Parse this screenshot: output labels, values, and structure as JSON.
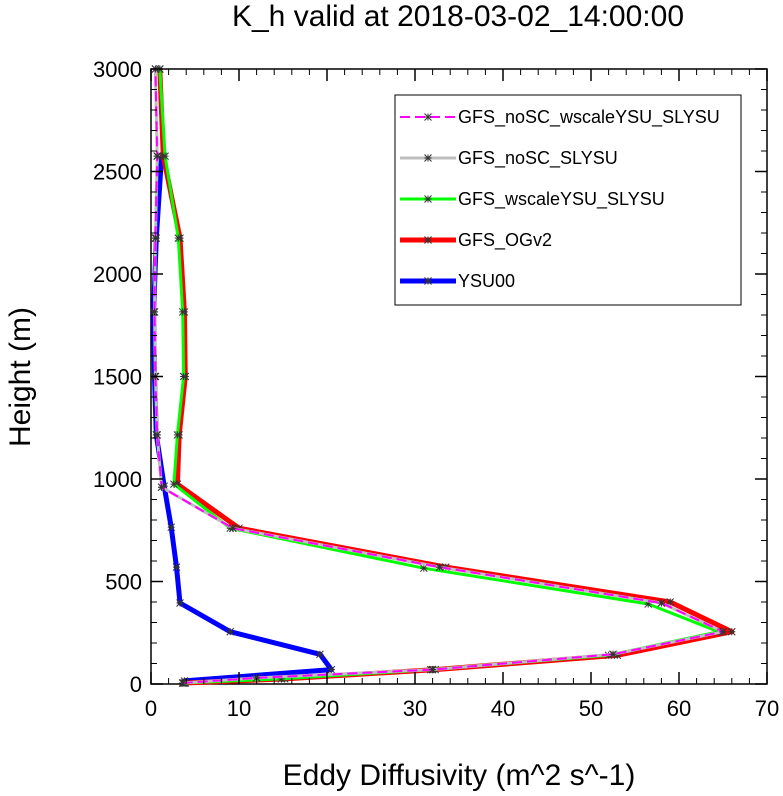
{
  "chart_data": {
    "type": "line",
    "title": "K_h valid at 2018-03-02_14:00:00",
    "xlabel": "Eddy Diffusivity (m^2 s^-1)",
    "ylabel": "Height (m)",
    "xlim": [
      0,
      70
    ],
    "ylim": [
      0,
      3000
    ],
    "xticks": [
      0,
      10,
      20,
      30,
      40,
      50,
      60,
      70
    ],
    "yticks": [
      0,
      500,
      1000,
      1500,
      2000,
      2500,
      3000
    ],
    "grid": false,
    "legend_position": "top-right",
    "series": [
      {
        "name": "YSU00",
        "color": "#0000ff",
        "style": "solid",
        "x": [
          3.8,
          3.8,
          20.5,
          19.2,
          9.0,
          3.3,
          2.9,
          2.3,
          1.5,
          0.6,
          0.4,
          0.3,
          0.6,
          1.2
        ],
        "y": [
          5,
          15,
          70,
          145,
          255,
          395,
          570,
          765,
          965,
          1215,
          1500,
          1815,
          2175,
          2575
        ]
      },
      {
        "name": "GFS_OGv2",
        "color": "#ff0000",
        "style": "solid",
        "x": [
          3.9,
          15.2,
          32.3,
          53.0,
          66.0,
          59.0,
          33.5,
          10.0,
          3.0,
          3.2,
          3.9,
          3.8,
          3.3,
          1.4,
          1.0
        ],
        "y": [
          5,
          25,
          70,
          140,
          255,
          400,
          570,
          760,
          975,
          1215,
          1500,
          1815,
          2175,
          2575,
          3000
        ]
      },
      {
        "name": "GFS_wscaleYSU_SLYSU",
        "color": "#00ff00",
        "style": "solid",
        "x": [
          3.7,
          14.8,
          31.8,
          52.0,
          64.5,
          56.5,
          31.0,
          9.0,
          2.6,
          3.0,
          3.7,
          3.6,
          3.1,
          1.6,
          1.0
        ],
        "y": [
          5,
          25,
          70,
          140,
          255,
          390,
          565,
          760,
          975,
          1215,
          1500,
          1815,
          2175,
          2575,
          3000
        ]
      },
      {
        "name": "GFS_noSC_SLYSU",
        "color": "#bebebe",
        "style": "solid",
        "x": [
          3.6,
          12.0,
          32.0,
          52.5,
          65.0,
          58.0,
          32.8,
          9.3,
          1.2,
          0.7,
          0.5,
          0.4,
          0.5,
          0.7,
          0.5
        ],
        "y": [
          5,
          30,
          70,
          145,
          255,
          395,
          570,
          760,
          960,
          1215,
          1500,
          1815,
          2175,
          2575,
          3000
        ]
      },
      {
        "name": "GFS_noSC_wscaleYSU_SLYSU",
        "color": "#ff00ff",
        "style": "dashed",
        "x": [
          3.6,
          12.0,
          32.0,
          52.5,
          65.0,
          58.0,
          32.8,
          9.3,
          1.2,
          0.7,
          0.5,
          0.4,
          0.5,
          0.7,
          0.5
        ],
        "y": [
          5,
          30,
          70,
          145,
          255,
          395,
          570,
          760,
          960,
          1215,
          1500,
          1815,
          2175,
          2575,
          3000
        ]
      }
    ],
    "legend": [
      {
        "label": "GFS_noSC_wscaleYSU_SLYSU",
        "color": "#ff00ff",
        "style": "dashed",
        "width": 2
      },
      {
        "label": "GFS_noSC_SLYSU",
        "color": "#bebebe",
        "style": "solid",
        "width": 3
      },
      {
        "label": "GFS_wscaleYSU_SLYSU",
        "color": "#00ff00",
        "style": "solid",
        "width": 3
      },
      {
        "label": "GFS_OGv2",
        "color": "#ff0000",
        "style": "solid",
        "width": 5
      },
      {
        "label": "YSU00",
        "color": "#0000ff",
        "style": "solid",
        "width": 5
      }
    ]
  }
}
